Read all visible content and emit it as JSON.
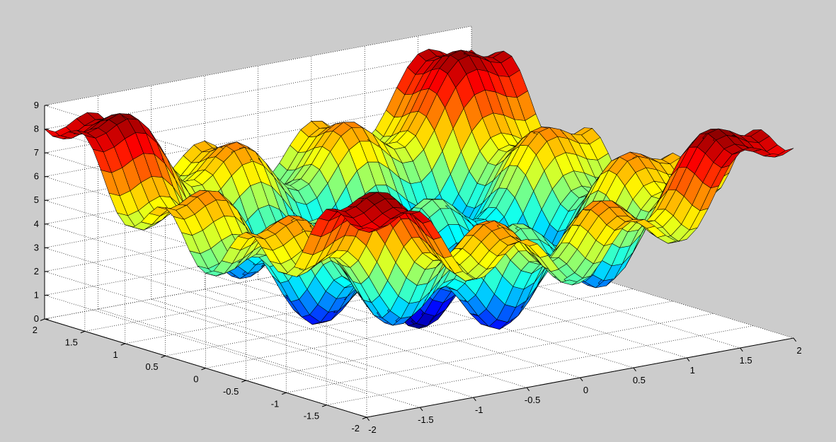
{
  "chart_data": {
    "type": "surface",
    "surface_function": "x^2 + y^2 + 2 - cos(2*pi*x) - cos(2*pi*y)",
    "x": {
      "min": -2,
      "max": 2,
      "samples": 41
    },
    "y": {
      "min": -2,
      "max": 2,
      "samples": 41
    },
    "xlim": [
      -2,
      2
    ],
    "ylim": [
      -2,
      2
    ],
    "zlim": [
      0,
      9
    ],
    "x_ticks": [
      "-2",
      "-1.5",
      "-1",
      "-0.5",
      "0",
      "0.5",
      "1",
      "1.5",
      "2"
    ],
    "y_ticks": [
      "-2",
      "-1.5",
      "-1",
      "-0.5",
      "0",
      "0.5",
      "1",
      "1.5",
      "2"
    ],
    "z_ticks": [
      "0",
      "1",
      "2",
      "3",
      "4",
      "5",
      "6",
      "7",
      "8",
      "9"
    ],
    "x_tick_values": [
      -2,
      -1.5,
      -1,
      -0.5,
      0,
      0.5,
      1,
      1.5,
      2
    ],
    "y_tick_values": [
      -2,
      -1.5,
      -1,
      -0.5,
      0,
      0.5,
      1,
      1.5,
      2
    ],
    "z_tick_values": [
      0,
      1,
      2,
      3,
      4,
      5,
      6,
      7,
      8,
      9
    ],
    "colormap": "jet",
    "edge_color": "#000000",
    "grid": true,
    "box": true,
    "view": {
      "azimuth": -37.5,
      "elevation": 30
    },
    "background_color": "#cccccc",
    "axes_color": "#ffffff"
  }
}
